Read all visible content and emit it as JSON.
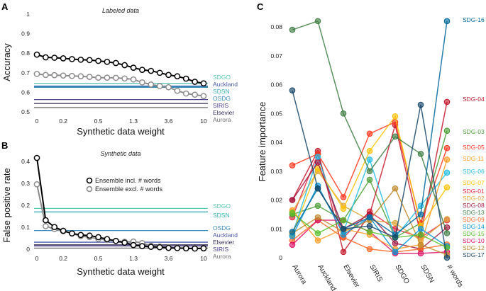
{
  "chart_data": [
    {
      "panel": "A",
      "type": "line",
      "title": "Labeled data",
      "xlabel": "Synthetic data weight",
      "ylabel": "Accuracy",
      "ylim": [
        0.5,
        1
      ],
      "yticks": [
        0.5,
        0.6,
        0.7,
        0.8,
        0.9,
        1
      ],
      "ytick_labels": [
        "0.5",
        "0.6",
        "0.7",
        "0.8",
        "0.9",
        "1"
      ],
      "x": [
        0,
        0.1,
        0.13,
        0.17,
        0.22,
        0.28,
        0.36,
        0.46,
        0.6,
        0.77,
        1,
        1.29,
        1.67,
        2.15,
        2.78,
        3.59,
        4.64,
        5.99,
        7.74,
        10
      ],
      "xtick_labels": [
        "0",
        "0.2",
        "0.5",
        "1.3",
        "3.6",
        "10"
      ],
      "xtick_index": [
        0,
        3,
        7,
        11,
        15,
        19
      ],
      "series": [
        {
          "name": "Ensemble incl. # words",
          "color": "#000000",
          "values": [
            0.793,
            0.779,
            0.777,
            0.774,
            0.77,
            0.767,
            0.765,
            0.761,
            0.756,
            0.75,
            0.739,
            0.726,
            0.715,
            0.71,
            0.7,
            0.689,
            0.682,
            0.67,
            0.654,
            0.646
          ]
        },
        {
          "name": "Ensemble excl. # words",
          "color": "#8c8c8c",
          "values": [
            0.694,
            0.689,
            0.688,
            0.686,
            0.684,
            0.682,
            0.679,
            0.675,
            0.675,
            0.674,
            0.671,
            0.666,
            0.651,
            0.64,
            0.632,
            0.626,
            0.608,
            0.594,
            0.588,
            0.581
          ]
        }
      ],
      "baselines": [
        {
          "name": "SDGO",
          "value": 0.646,
          "color": "#5cc8b4"
        },
        {
          "name": "Auckland",
          "value": 0.632,
          "color": "#4b5aa8"
        },
        {
          "name": "SDSN",
          "value": 0.629,
          "color": "#3bb2b8"
        },
        {
          "name": "OSDG",
          "value": 0.627,
          "color": "#3a8cb8"
        },
        {
          "name": "SIRIS",
          "value": 0.563,
          "color": "#4e3f8f"
        },
        {
          "name": "Elsevier",
          "value": 0.543,
          "color": "#3b2f5e"
        },
        {
          "name": "Aurora",
          "value": 0.522,
          "color": "#707070"
        }
      ]
    },
    {
      "panel": "B",
      "type": "line",
      "title": "Synthetic data",
      "xlabel": "Synthetic data weight",
      "ylabel": "False positive rate",
      "ylim": [
        0,
        0.42
      ],
      "yticks": [
        0,
        0.1,
        0.2,
        0.3,
        0.4
      ],
      "ytick_labels": [
        "0",
        "0.1",
        "0.2",
        "0.3",
        "0.4"
      ],
      "x": [
        0,
        0.1,
        0.13,
        0.17,
        0.22,
        0.28,
        0.36,
        0.46,
        0.6,
        0.77,
        1,
        1.29,
        1.67,
        2.15,
        2.78,
        3.59,
        4.64,
        5.99,
        7.74,
        10
      ],
      "xtick_labels": [
        "0",
        "0.2",
        "0.5",
        "1.3",
        "3.6",
        "10"
      ],
      "xtick_index": [
        0,
        3,
        7,
        11,
        15,
        19
      ],
      "legend_position": "top-center",
      "series": [
        {
          "name": "Ensemble incl. # words",
          "color": "#000000",
          "values": [
            0.416,
            0.132,
            0.101,
            0.084,
            0.072,
            0.065,
            0.062,
            0.055,
            0.046,
            0.038,
            0.03,
            0.019,
            0.014,
            0.011,
            0.009,
            0.006,
            0.005,
            0.004,
            0.003,
            0.004
          ]
        },
        {
          "name": "Ensemble excl. # words",
          "color": "#8c8c8c",
          "values": [
            0.296,
            0.105,
            0.092,
            0.082,
            0.072,
            0.06,
            0.055,
            0.047,
            0.042,
            0.038,
            0.034,
            0.035,
            0.028,
            0.016,
            0.012,
            0.009,
            0.006,
            0.005,
            0.004,
            0.004
          ]
        }
      ],
      "baselines": [
        {
          "name": "SDGO",
          "value": 0.186,
          "color": "#5cc8b4"
        },
        {
          "name": "SDSN",
          "value": 0.17,
          "color": "#3bb2b8"
        },
        {
          "name": "OSDG",
          "value": 0.085,
          "color": "#3a8cb8"
        },
        {
          "name": "Auckland",
          "value": 0.032,
          "color": "#4b5aa8"
        },
        {
          "name": "Elsevier",
          "value": 0.02,
          "color": "#3b2f5e"
        },
        {
          "name": "SIRIS",
          "value": 0.015,
          "color": "#4e3f8f"
        },
        {
          "name": "Aurora",
          "value": 0.005,
          "color": "#707070"
        }
      ]
    },
    {
      "panel": "C",
      "type": "line",
      "ylabel": "Feature importance",
      "ylim": [
        0,
        0.085
      ],
      "yticks": [
        0,
        0.01,
        0.02,
        0.03,
        0.04,
        0.05,
        0.06,
        0.07,
        0.08
      ],
      "ytick_labels": [
        "0",
        "0.01",
        "0.02",
        "0.03",
        "0.04",
        "0.05",
        "0.06",
        "0.07",
        "0.08"
      ],
      "categories": [
        "Aurora",
        "Auckland",
        "Elsevier",
        "SIRIS",
        "SDGO",
        "SDSN",
        "# words"
      ],
      "series": [
        {
          "name": "SDG-01",
          "color": "#e5243b",
          "values": [
            0.014,
            0.036,
            0.007,
            0.016,
            0.01,
            0.007,
            0.013
          ]
        },
        {
          "name": "SDG-02",
          "color": "#dda63a",
          "values": [
            0.016,
            0.03,
            0.018,
            0.013,
            0.012,
            0.006,
            0.0134
          ]
        },
        {
          "name": "SDG-03",
          "color": "#4c9f38",
          "values": [
            0.015,
            0.018,
            0.013,
            0.027,
            0.007,
            0.012,
            0.044
          ]
        },
        {
          "name": "SDG-04",
          "color": "#c5192d",
          "values": [
            0.02,
            0.037,
            0.002,
            0.015,
            0.046,
            0.008,
            0.054
          ]
        },
        {
          "name": "SDG-05",
          "color": "#ff3a21",
          "values": [
            0.032,
            0.036,
            0.021,
            0.043,
            0.047,
            0.012,
            0.038
          ]
        },
        {
          "name": "SDG-06",
          "color": "#26bde2",
          "values": [
            0.008,
            0.035,
            0.009,
            0.034,
            0.007,
            0.018,
            0.0295
          ]
        },
        {
          "name": "SDG-07",
          "color": "#fcc30b",
          "values": [
            0.008,
            0.031,
            0.017,
            0.037,
            0.049,
            0.011,
            0.0244
          ]
        },
        {
          "name": "SDG-08",
          "color": "#a21942",
          "values": [
            0.02,
            0.033,
            0.01,
            0.015,
            0.005,
            0.003,
            0.0105
          ]
        },
        {
          "name": "SDG-09",
          "color": "#fd6925",
          "values": [
            0.006,
            0.013,
            0.007,
            0.003,
            0.002,
            0.003,
            0.0046
          ]
        },
        {
          "name": "SDG-10",
          "color": "#dd1367",
          "values": [
            0.0045,
            0.013,
            0.013,
            0.009,
            0.0015,
            0.0015,
            0.002
          ]
        },
        {
          "name": "SDG-11",
          "color": "#fd9d24",
          "values": [
            0.0165,
            0.006,
            0.01,
            0.008,
            0.003,
            0.0045,
            0.034
          ]
        },
        {
          "name": "SDG-12",
          "color": "#bf8b2e",
          "values": [
            0.0085,
            0.014,
            0.009,
            0.013,
            0.024,
            0.0045,
            0.001
          ]
        },
        {
          "name": "SDG-13",
          "color": "#3f7e44",
          "values": [
            0.079,
            0.082,
            0.05,
            0.03,
            0.042,
            0.036,
            0.0085
          ]
        },
        {
          "name": "SDG-14",
          "color": "#0a97d9",
          "values": [
            0.0075,
            0.025,
            0.008,
            0.014,
            0.002,
            0.01,
            0.004
          ]
        },
        {
          "name": "SDG-15",
          "color": "#56c02b",
          "values": [
            0.0155,
            0.0085,
            0.013,
            0.009,
            0.007,
            0.008,
            0.0035
          ]
        },
        {
          "name": "SDG-16",
          "color": "#00689d",
          "values": [
            0.009,
            0.024,
            0.01,
            0.014,
            0.008,
            0.015,
            0.082
          ]
        },
        {
          "name": "SDG-17",
          "color": "#19486a",
          "values": [
            0.058,
            0.024,
            0.01,
            0.011,
            0.007,
            0.053,
            0.0
          ]
        }
      ]
    }
  ],
  "labels": {
    "panel_a": "A",
    "panel_b": "B",
    "panel_c": "C"
  }
}
